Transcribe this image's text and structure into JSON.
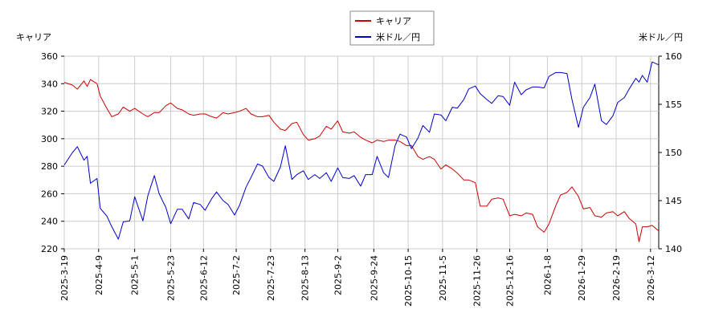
{
  "chart_data": {
    "type": "line",
    "left_axis_label": "キャリア",
    "right_axis_label": "米ドル／円",
    "legend": [
      {
        "name": "キャリア",
        "color": "#cc0000"
      },
      {
        "name": "米ドル／円",
        "color": "#0000cc"
      }
    ],
    "legend_placement": "top-center",
    "grid": true,
    "x_start": "2025-03-19",
    "x_end": "2026-03-17",
    "x_ticks": [
      "2025-3-19",
      "2025-4-9",
      "2025-5-1",
      "2025-5-23",
      "2025-6-12",
      "2025-7-2",
      "2025-7-23",
      "2025-8-13",
      "2025-9-2",
      "2025-9-24",
      "2025-10-15",
      "2025-11-5",
      "2025-11-26",
      "2025-12-16",
      "2026-1-8",
      "2026-1-29",
      "2026-2-19",
      "2026-3-12"
    ],
    "left_axis": {
      "min": 220,
      "max": 360,
      "ticks": [
        220,
        240,
        260,
        280,
        300,
        320,
        340,
        360
      ]
    },
    "right_axis": {
      "min": 140,
      "max": 160,
      "ticks": [
        140,
        145,
        150,
        155,
        160
      ]
    },
    "series": [
      {
        "name": "キャリア",
        "axis": "left",
        "color": "#cc0000",
        "points": [
          [
            "2025-03-19",
            341
          ],
          [
            "2025-03-24",
            339
          ],
          [
            "2025-03-27",
            336
          ],
          [
            "2025-03-31",
            342
          ],
          [
            "2025-04-02",
            338
          ],
          [
            "2025-04-04",
            343
          ],
          [
            "2025-04-08",
            340
          ],
          [
            "2025-04-10",
            331
          ],
          [
            "2025-04-14",
            322
          ],
          [
            "2025-04-17",
            316
          ],
          [
            "2025-04-21",
            318
          ],
          [
            "2025-04-24",
            323
          ],
          [
            "2025-04-28",
            320
          ],
          [
            "2025-05-01",
            322
          ],
          [
            "2025-05-06",
            318
          ],
          [
            "2025-05-09",
            316
          ],
          [
            "2025-05-13",
            319
          ],
          [
            "2025-05-16",
            319
          ],
          [
            "2025-05-20",
            324
          ],
          [
            "2025-05-23",
            326
          ],
          [
            "2025-05-27",
            322
          ],
          [
            "2025-05-30",
            321
          ],
          [
            "2025-06-03",
            318
          ],
          [
            "2025-06-06",
            317
          ],
          [
            "2025-06-10",
            318
          ],
          [
            "2025-06-13",
            318
          ],
          [
            "2025-06-17",
            316
          ],
          [
            "2025-06-20",
            315
          ],
          [
            "2025-06-24",
            319
          ],
          [
            "2025-06-27",
            318
          ],
          [
            "2025-07-01",
            319
          ],
          [
            "2025-07-04",
            320
          ],
          [
            "2025-07-08",
            322
          ],
          [
            "2025-07-11",
            318
          ],
          [
            "2025-07-15",
            316
          ],
          [
            "2025-07-18",
            316
          ],
          [
            "2025-07-22",
            317
          ],
          [
            "2025-07-25",
            312
          ],
          [
            "2025-07-29",
            307
          ],
          [
            "2025-08-01",
            306
          ],
          [
            "2025-08-05",
            311
          ],
          [
            "2025-08-08",
            312
          ],
          [
            "2025-08-12",
            303
          ],
          [
            "2025-08-15",
            299
          ],
          [
            "2025-08-19",
            300
          ],
          [
            "2025-08-22",
            302
          ],
          [
            "2025-08-26",
            309
          ],
          [
            "2025-08-29",
            307
          ],
          [
            "2025-09-02",
            313
          ],
          [
            "2025-09-05",
            305
          ],
          [
            "2025-09-09",
            304
          ],
          [
            "2025-09-12",
            305
          ],
          [
            "2025-09-16",
            301
          ],
          [
            "2025-09-19",
            299
          ],
          [
            "2025-09-23",
            297
          ],
          [
            "2025-09-26",
            299
          ],
          [
            "2025-09-30",
            298
          ],
          [
            "2025-10-03",
            299
          ],
          [
            "2025-10-07",
            299
          ],
          [
            "2025-10-10",
            298
          ],
          [
            "2025-10-14",
            295
          ],
          [
            "2025-10-17",
            295
          ],
          [
            "2025-10-21",
            287
          ],
          [
            "2025-10-24",
            285
          ],
          [
            "2025-10-28",
            287
          ],
          [
            "2025-10-31",
            285
          ],
          [
            "2025-11-04",
            278
          ],
          [
            "2025-11-07",
            281
          ],
          [
            "2025-11-11",
            278
          ],
          [
            "2025-11-14",
            275
          ],
          [
            "2025-11-18",
            270
          ],
          [
            "2025-11-21",
            270
          ],
          [
            "2025-11-25",
            268
          ],
          [
            "2025-11-28",
            251
          ],
          [
            "2025-12-02",
            251
          ],
          [
            "2025-12-05",
            256
          ],
          [
            "2025-12-09",
            257
          ],
          [
            "2025-12-12",
            256
          ],
          [
            "2025-12-16",
            244
          ],
          [
            "2025-12-19",
            245
          ],
          [
            "2025-12-23",
            244
          ],
          [
            "2025-12-26",
            246
          ],
          [
            "2025-12-30",
            245
          ],
          [
            "2026-01-02",
            236
          ],
          [
            "2026-01-06",
            232
          ],
          [
            "2026-01-09",
            238
          ],
          [
            "2026-01-13",
            251
          ],
          [
            "2026-01-16",
            259
          ],
          [
            "2026-01-20",
            261
          ],
          [
            "2026-01-23",
            265
          ],
          [
            "2026-01-27",
            258
          ],
          [
            "2026-01-30",
            249
          ],
          [
            "2026-02-03",
            250
          ],
          [
            "2026-02-06",
            244
          ],
          [
            "2026-02-10",
            243
          ],
          [
            "2026-02-13",
            246
          ],
          [
            "2026-02-17",
            247
          ],
          [
            "2026-02-20",
            244
          ],
          [
            "2026-02-24",
            247
          ],
          [
            "2026-02-27",
            242
          ],
          [
            "2026-03-03",
            238
          ],
          [
            "2026-03-05",
            225
          ],
          [
            "2026-03-07",
            236
          ],
          [
            "2026-03-10",
            236
          ],
          [
            "2026-03-13",
            237
          ],
          [
            "2026-03-17",
            233
          ]
        ]
      },
      {
        "name": "米ドル／円",
        "axis": "right",
        "color": "#0000cc",
        "points": [
          [
            "2025-03-19",
            148.7
          ],
          [
            "2025-03-24",
            150.0
          ],
          [
            "2025-03-27",
            150.6
          ],
          [
            "2025-03-31",
            149.2
          ],
          [
            "2025-04-02",
            149.6
          ],
          [
            "2025-04-04",
            146.8
          ],
          [
            "2025-04-08",
            147.3
          ],
          [
            "2025-04-10",
            144.2
          ],
          [
            "2025-04-14",
            143.4
          ],
          [
            "2025-04-17",
            142.3
          ],
          [
            "2025-04-21",
            141.0
          ],
          [
            "2025-04-24",
            142.8
          ],
          [
            "2025-04-28",
            142.9
          ],
          [
            "2025-05-01",
            145.4
          ],
          [
            "2025-05-06",
            142.9
          ],
          [
            "2025-05-09",
            145.5
          ],
          [
            "2025-05-13",
            147.6
          ],
          [
            "2025-05-16",
            145.7
          ],
          [
            "2025-05-20",
            144.3
          ],
          [
            "2025-05-23",
            142.6
          ],
          [
            "2025-05-27",
            144.1
          ],
          [
            "2025-05-30",
            144.1
          ],
          [
            "2025-06-03",
            143.1
          ],
          [
            "2025-06-06",
            144.8
          ],
          [
            "2025-06-10",
            144.6
          ],
          [
            "2025-06-13",
            144.0
          ],
          [
            "2025-06-17",
            145.2
          ],
          [
            "2025-06-20",
            145.9
          ],
          [
            "2025-06-24",
            145.0
          ],
          [
            "2025-06-27",
            144.6
          ],
          [
            "2025-07-01",
            143.5
          ],
          [
            "2025-07-04",
            144.5
          ],
          [
            "2025-07-08",
            146.4
          ],
          [
            "2025-07-11",
            147.4
          ],
          [
            "2025-07-15",
            148.8
          ],
          [
            "2025-07-18",
            148.6
          ],
          [
            "2025-07-22",
            147.4
          ],
          [
            "2025-07-25",
            147.0
          ],
          [
            "2025-07-29",
            148.5
          ],
          [
            "2025-08-01",
            150.7
          ],
          [
            "2025-08-05",
            147.2
          ],
          [
            "2025-08-08",
            147.7
          ],
          [
            "2025-08-12",
            148.1
          ],
          [
            "2025-08-15",
            147.2
          ],
          [
            "2025-08-19",
            147.7
          ],
          [
            "2025-08-22",
            147.3
          ],
          [
            "2025-08-26",
            147.9
          ],
          [
            "2025-08-29",
            147.0
          ],
          [
            "2025-09-02",
            148.4
          ],
          [
            "2025-09-05",
            147.4
          ],
          [
            "2025-09-09",
            147.3
          ],
          [
            "2025-09-12",
            147.6
          ],
          [
            "2025-09-16",
            146.5
          ],
          [
            "2025-09-19",
            147.7
          ],
          [
            "2025-09-23",
            147.7
          ],
          [
            "2025-09-26",
            149.6
          ],
          [
            "2025-09-30",
            147.9
          ],
          [
            "2025-10-03",
            147.4
          ],
          [
            "2025-10-07",
            150.7
          ],
          [
            "2025-10-10",
            151.9
          ],
          [
            "2025-10-14",
            151.6
          ],
          [
            "2025-10-17",
            150.4
          ],
          [
            "2025-10-21",
            151.5
          ],
          [
            "2025-10-24",
            152.8
          ],
          [
            "2025-10-28",
            152.1
          ],
          [
            "2025-10-31",
            154.0
          ],
          [
            "2025-11-04",
            153.9
          ],
          [
            "2025-11-07",
            153.3
          ],
          [
            "2025-11-11",
            154.7
          ],
          [
            "2025-11-14",
            154.6
          ],
          [
            "2025-11-18",
            155.5
          ],
          [
            "2025-11-21",
            156.6
          ],
          [
            "2025-11-25",
            156.9
          ],
          [
            "2025-11-28",
            156.1
          ],
          [
            "2025-12-02",
            155.5
          ],
          [
            "2025-12-05",
            155.1
          ],
          [
            "2025-12-09",
            155.9
          ],
          [
            "2025-12-12",
            155.8
          ],
          [
            "2025-12-16",
            154.9
          ],
          [
            "2025-12-19",
            157.3
          ],
          [
            "2025-12-23",
            156.0
          ],
          [
            "2025-12-26",
            156.5
          ],
          [
            "2025-12-30",
            156.8
          ],
          [
            "2026-01-02",
            156.8
          ],
          [
            "2026-01-06",
            156.7
          ],
          [
            "2026-01-09",
            157.9
          ],
          [
            "2026-01-13",
            158.3
          ],
          [
            "2026-01-16",
            158.3
          ],
          [
            "2026-01-20",
            158.2
          ],
          [
            "2026-01-23",
            155.5
          ],
          [
            "2026-01-27",
            152.6
          ],
          [
            "2026-01-30",
            154.7
          ],
          [
            "2026-02-03",
            155.7
          ],
          [
            "2026-02-06",
            157.1
          ],
          [
            "2026-02-10",
            153.3
          ],
          [
            "2026-02-13",
            152.9
          ],
          [
            "2026-02-17",
            153.8
          ],
          [
            "2026-02-20",
            155.2
          ],
          [
            "2026-02-24",
            155.7
          ],
          [
            "2026-02-27",
            156.6
          ],
          [
            "2026-03-03",
            157.7
          ],
          [
            "2026-03-05",
            157.3
          ],
          [
            "2026-03-07",
            158.0
          ],
          [
            "2026-03-10",
            157.3
          ],
          [
            "2026-03-13",
            159.4
          ],
          [
            "2026-03-17",
            159.1
          ]
        ]
      }
    ]
  }
}
